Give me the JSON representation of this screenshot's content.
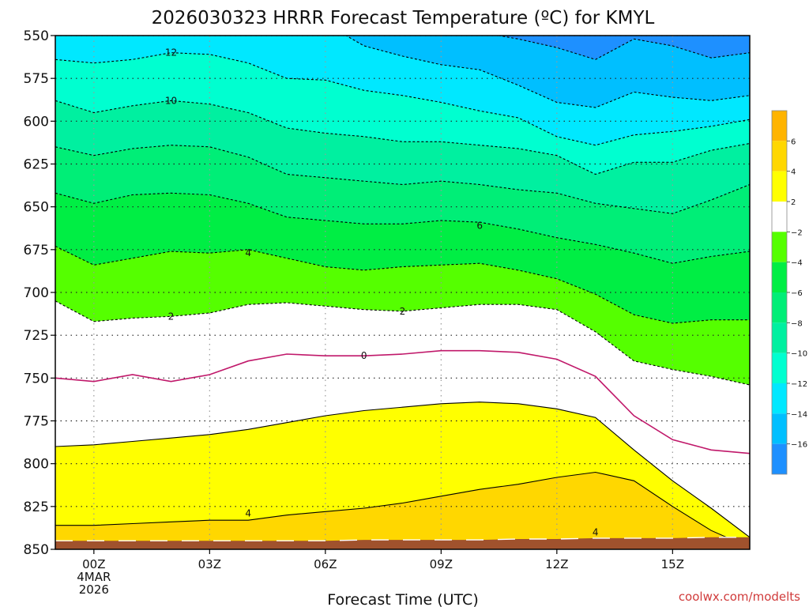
{
  "chart_data": {
    "type": "heatmap",
    "title": "2026030323 HRRR Forecast Temperature (ºC) for KMYL",
    "xlabel": "Forecast Time (UTC)",
    "credit": "coolwx.com/modelts",
    "x_ticks": [
      "00Z",
      "03Z",
      "06Z",
      "09Z",
      "12Z",
      "15Z"
    ],
    "x_date": [
      "4MAR",
      "2026"
    ],
    "x_hours": [
      -1,
      0,
      1,
      2,
      3,
      4,
      5,
      6,
      7,
      8,
      9,
      10,
      11,
      12,
      13,
      14,
      15,
      16,
      17
    ],
    "xlim": [
      -1,
      17
    ],
    "ylim": [
      850,
      550
    ],
    "y_ticks": [
      550,
      575,
      600,
      625,
      650,
      675,
      700,
      725,
      750,
      775,
      800,
      825,
      850
    ],
    "ground_pressure": [
      845,
      845,
      845,
      845,
      845,
      845,
      845,
      845,
      844.5,
      844.5,
      844.5,
      844.5,
      844,
      844,
      843.5,
      843.5,
      843.5,
      843,
      843
    ],
    "isotherms": [
      {
        "temp": 4,
        "p": [
          836,
          836,
          835,
          834,
          833,
          833,
          830,
          828,
          826,
          823,
          819,
          815,
          812,
          808,
          805,
          810,
          825,
          839,
          849
        ],
        "color": "#000000",
        "dash": false
      },
      {
        "temp": 2,
        "p": [
          790,
          789,
          787,
          785,
          783,
          780,
          776,
          772,
          769,
          767,
          765,
          764,
          765,
          768,
          773,
          792,
          810,
          826,
          843
        ],
        "color": "#000000",
        "dash": false
      },
      {
        "temp": 0,
        "p": [
          750,
          752,
          748,
          752,
          748,
          740,
          736,
          737,
          737,
          736,
          734,
          734,
          735,
          739,
          749,
          772,
          786,
          792,
          794
        ],
        "color": "#c0186a",
        "dash": false
      },
      {
        "temp": -2,
        "p": [
          705,
          717,
          715,
          714,
          712,
          707,
          706,
          708,
          710,
          711,
          709,
          707,
          707,
          710,
          723,
          740,
          745,
          749,
          754
        ],
        "color": "#000000",
        "dash": true
      },
      {
        "temp": -4,
        "p": [
          673,
          684,
          680,
          676,
          677,
          675,
          680,
          685,
          687,
          685,
          684,
          683,
          687,
          692,
          701,
          713,
          718,
          716,
          716
        ],
        "color": "#000000",
        "dash": true
      },
      {
        "temp": -6,
        "p": [
          642,
          648,
          643,
          642,
          643,
          648,
          656,
          658,
          660,
          660,
          658,
          659,
          663,
          668,
          672,
          677,
          683,
          679,
          676
        ],
        "color": "#000000",
        "dash": true
      },
      {
        "temp": -8,
        "p": [
          615,
          620,
          616,
          614,
          615,
          621,
          631,
          633,
          635,
          637,
          635,
          637,
          640,
          642,
          648,
          651,
          654,
          646,
          637
        ],
        "color": "#000000",
        "dash": true
      },
      {
        "temp": -10,
        "p": [
          588,
          595,
          591,
          588,
          590,
          595,
          604,
          607,
          609,
          612,
          612,
          614,
          616,
          620,
          631,
          624,
          624,
          617,
          613
        ],
        "color": "#000000",
        "dash": true
      },
      {
        "temp": -12,
        "p": [
          564,
          566,
          564,
          560,
          561,
          566,
          575,
          576,
          582,
          585,
          589,
          594,
          598,
          609,
          614,
          608,
          606,
          603,
          599
        ],
        "color": "#000000",
        "dash": true
      },
      {
        "temp": -14,
        "p": [
          535,
          535,
          535,
          535,
          535,
          535,
          535,
          543,
          556,
          562,
          567,
          570,
          579,
          589,
          592,
          583,
          586,
          588,
          585
        ],
        "color": "#000000",
        "dash": true
      },
      {
        "temp": -16,
        "p": [
          520,
          520,
          520,
          520,
          520,
          520,
          520,
          520,
          525,
          537,
          541,
          548,
          552,
          557,
          564,
          552,
          556,
          563,
          560
        ],
        "color": "#000000",
        "dash": true
      }
    ],
    "contour_labels": [
      {
        "text": "12",
        "x": 2,
        "p": 560
      },
      {
        "text": "10",
        "x": 2,
        "p": 588
      },
      {
        "text": "6",
        "x": 10,
        "p": 661
      },
      {
        "text": "4",
        "x": 4,
        "p": 677
      },
      {
        "text": "2",
        "x": 2,
        "p": 714
      },
      {
        "text": "2",
        "x": 8,
        "p": 711
      },
      {
        "text": "0",
        "x": 7,
        "p": 737
      },
      {
        "text": "4",
        "x": 4,
        "p": 829
      },
      {
        "text": "4",
        "x": 13,
        "p": 840
      }
    ],
    "colorbar": {
      "bins": [
        {
          "from": 6,
          "to": 8,
          "color": "#ffb400"
        },
        {
          "from": 4,
          "to": 6,
          "color": "#ffd700"
        },
        {
          "from": 2,
          "to": 4,
          "color": "#ffff00"
        },
        {
          "from": -2,
          "to": 2,
          "color": "#ffffff"
        },
        {
          "from": -4,
          "to": -2,
          "color": "#55ff00"
        },
        {
          "from": -6,
          "to": -4,
          "color": "#00ee44"
        },
        {
          "from": -8,
          "to": -6,
          "color": "#00ee77"
        },
        {
          "from": -10,
          "to": -8,
          "color": "#00f0a0"
        },
        {
          "from": -12,
          "to": -10,
          "color": "#00ffd0"
        },
        {
          "from": -14,
          "to": -12,
          "color": "#00e8ff"
        },
        {
          "from": -16,
          "to": -14,
          "color": "#00bfff"
        },
        {
          "from": -18,
          "to": -16,
          "color": "#1e90ff"
        }
      ],
      "labels": [
        "6",
        "4",
        "2",
        "−2",
        "−4",
        "−6",
        "−8",
        "−10",
        "−12",
        "−14",
        "−16"
      ]
    },
    "colors": {
      "ground": "#a0522d",
      "warm_fill": "#ffff00"
    }
  }
}
